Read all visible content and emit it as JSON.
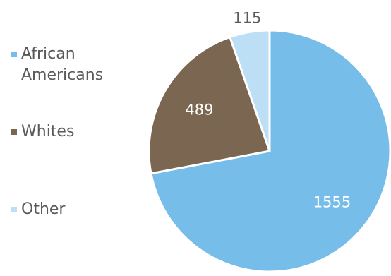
{
  "chart_data": {
    "type": "pie",
    "categories": [
      "African Americans",
      "Whites",
      "Other"
    ],
    "values": [
      1555,
      489,
      115
    ],
    "labels": [
      "1555",
      "489",
      "115"
    ],
    "colors": [
      "#77bde9",
      "#7b6651",
      "#bddff5"
    ],
    "label_colors": [
      "#ffffff",
      "#ffffff",
      "#5a5a5a"
    ],
    "legend_position": "left",
    "start_angle_deg": 0,
    "direction": "clockwise"
  }
}
